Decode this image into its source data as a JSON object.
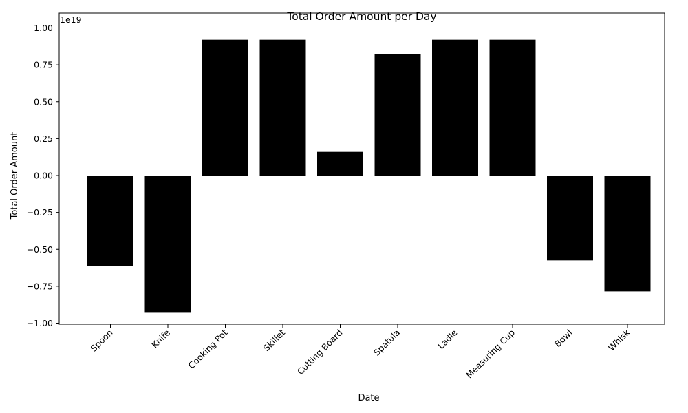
{
  "chart_data": {
    "type": "bar",
    "title": "Total Order Amount per Day",
    "xlabel": "Date",
    "ylabel": "Total Order Amount",
    "scale_label": "1e19",
    "categories": [
      "Spoon",
      "Knife",
      "Cooking Pot",
      "Skillet",
      "Cutting Board",
      "Spatula",
      "Ladle",
      "Measuring Cup",
      "Bowl",
      "Whisk"
    ],
    "values": [
      -0.615,
      -0.925,
      0.92,
      0.92,
      0.16,
      0.825,
      0.92,
      0.92,
      -0.575,
      -0.785
    ],
    "ylim": [
      -1.02,
      1.02
    ],
    "yticks": [
      -1.0,
      -0.75,
      -0.5,
      -0.25,
      0.0,
      0.25,
      0.5,
      0.75,
      1.0
    ],
    "ytick_labels": [
      "−1.00",
      "−0.75",
      "−0.50",
      "−0.25",
      "0.00",
      "0.25",
      "0.50",
      "0.75",
      "1.00"
    ],
    "bar_color": "#000000",
    "grid": false,
    "legend": "none"
  }
}
